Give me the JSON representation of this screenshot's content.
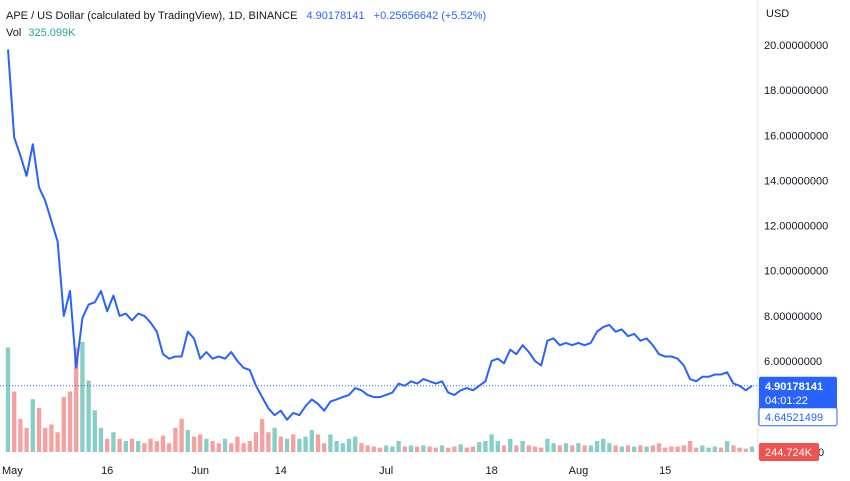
{
  "header": {
    "symbol": "APE / US Dollar (calculated by TradingView), 1D, BINANCE",
    "price": "4.90178141",
    "change": "+0.25656642 (+5.52%)"
  },
  "volume": {
    "label": "Vol",
    "value": "325.099K"
  },
  "currency": "USD",
  "tags": {
    "last_price": "4.90178141",
    "countdown": "04:01:22",
    "secondary": "4.64521499",
    "volume": "244.724K"
  },
  "colors": {
    "line": "#2962ff",
    "vol_up": "#26a69a",
    "vol_down": "#ef5350",
    "price_tag_bg": "#2962ff",
    "volume_tag_bg": "#ef5350"
  },
  "chart_data": {
    "type": "line",
    "ylim": [
      0,
      21
    ],
    "yticks": [
      {
        "value": 20,
        "label": "20.00000000"
      },
      {
        "value": 18,
        "label": "18.00000000"
      },
      {
        "value": 16,
        "label": "16.00000000"
      },
      {
        "value": 14,
        "label": "14.00000000"
      },
      {
        "value": 12,
        "label": "12.00000000"
      },
      {
        "value": 10,
        "label": "10.00000000"
      },
      {
        "value": 8,
        "label": "8.00000000"
      },
      {
        "value": 6,
        "label": "6.00000000"
      }
    ],
    "vol_zero_label": "0",
    "x_labels": [
      {
        "index": 0,
        "label": "May"
      },
      {
        "index": 16,
        "label": "16"
      },
      {
        "index": 31,
        "label": "Jun"
      },
      {
        "index": 44,
        "label": "14"
      },
      {
        "index": 61,
        "label": "Jul"
      },
      {
        "index": 78,
        "label": "18"
      },
      {
        "index": 92,
        "label": "Aug"
      },
      {
        "index": 106,
        "label": "15"
      }
    ],
    "close": [
      19.8,
      15.9,
      15.1,
      14.2,
      15.6,
      13.7,
      13.1,
      12.2,
      11.3,
      8.0,
      9.1,
      5.7,
      7.9,
      8.5,
      8.6,
      9.1,
      8.2,
      8.9,
      8.0,
      8.1,
      7.8,
      8.1,
      8.0,
      7.7,
      7.3,
      6.3,
      6.1,
      6.2,
      6.2,
      7.3,
      7.0,
      6.1,
      6.4,
      6.1,
      6.2,
      6.1,
      6.4,
      6.0,
      5.7,
      5.6,
      4.9,
      4.4,
      3.9,
      3.6,
      3.8,
      3.4,
      3.7,
      3.6,
      4.0,
      4.3,
      4.1,
      3.8,
      4.2,
      4.3,
      4.4,
      4.5,
      4.8,
      4.7,
      4.5,
      4.4,
      4.4,
      4.5,
      4.6,
      5.0,
      4.9,
      5.1,
      5.0,
      5.2,
      5.1,
      5.0,
      5.1,
      4.6,
      4.5,
      4.7,
      4.8,
      4.7,
      4.9,
      5.1,
      6.0,
      6.1,
      5.9,
      6.5,
      6.3,
      6.7,
      6.4,
      6.0,
      5.8,
      6.9,
      7.0,
      6.7,
      6.8,
      6.7,
      6.8,
      6.7,
      6.8,
      7.3,
      7.5,
      7.6,
      7.3,
      7.4,
      7.1,
      7.2,
      6.9,
      7.0,
      6.7,
      6.3,
      6.2,
      6.2,
      6.1,
      5.8,
      5.2,
      5.1,
      5.3,
      5.3,
      5.4,
      5.4,
      5.5,
      5.0,
      4.9,
      4.7,
      4.9
    ],
    "volume_bars": [
      {
        "v": 0.95,
        "up": true
      },
      {
        "v": 0.55,
        "up": false
      },
      {
        "v": 0.3,
        "up": false
      },
      {
        "v": 0.22,
        "up": false
      },
      {
        "v": 0.48,
        "up": true
      },
      {
        "v": 0.4,
        "up": false
      },
      {
        "v": 0.22,
        "up": false
      },
      {
        "v": 0.25,
        "up": false
      },
      {
        "v": 0.18,
        "up": false
      },
      {
        "v": 0.5,
        "up": false
      },
      {
        "v": 0.55,
        "up": false
      },
      {
        "v": 0.95,
        "up": false
      },
      {
        "v": 1.0,
        "up": true
      },
      {
        "v": 0.65,
        "up": true
      },
      {
        "v": 0.38,
        "up": true
      },
      {
        "v": 0.22,
        "up": true
      },
      {
        "v": 0.12,
        "up": false
      },
      {
        "v": 0.18,
        "up": true
      },
      {
        "v": 0.12,
        "up": false
      },
      {
        "v": 0.1,
        "up": true
      },
      {
        "v": 0.12,
        "up": false
      },
      {
        "v": 0.1,
        "up": true
      },
      {
        "v": 0.08,
        "up": false
      },
      {
        "v": 0.12,
        "up": false
      },
      {
        "v": 0.1,
        "up": false
      },
      {
        "v": 0.15,
        "up": false
      },
      {
        "v": 0.08,
        "up": false
      },
      {
        "v": 0.22,
        "up": false
      },
      {
        "v": 0.3,
        "up": false
      },
      {
        "v": 0.2,
        "up": true
      },
      {
        "v": 0.14,
        "up": false
      },
      {
        "v": 0.16,
        "up": false
      },
      {
        "v": 0.12,
        "up": true
      },
      {
        "v": 0.1,
        "up": false
      },
      {
        "v": 0.08,
        "up": false
      },
      {
        "v": 0.12,
        "up": true
      },
      {
        "v": 0.08,
        "up": false
      },
      {
        "v": 0.14,
        "up": false
      },
      {
        "v": 0.08,
        "up": false
      },
      {
        "v": 0.1,
        "up": false
      },
      {
        "v": 0.18,
        "up": false
      },
      {
        "v": 0.3,
        "up": false
      },
      {
        "v": 0.18,
        "up": false
      },
      {
        "v": 0.22,
        "up": true
      },
      {
        "v": 0.14,
        "up": false
      },
      {
        "v": 0.12,
        "up": true
      },
      {
        "v": 0.16,
        "up": false
      },
      {
        "v": 0.12,
        "up": true
      },
      {
        "v": 0.14,
        "up": true
      },
      {
        "v": 0.2,
        "up": true
      },
      {
        "v": 0.16,
        "up": false
      },
      {
        "v": 0.08,
        "up": false
      },
      {
        "v": 0.16,
        "up": true
      },
      {
        "v": 0.1,
        "up": true
      },
      {
        "v": 0.08,
        "up": true
      },
      {
        "v": 0.12,
        "up": true
      },
      {
        "v": 0.14,
        "up": true
      },
      {
        "v": 0.08,
        "up": false
      },
      {
        "v": 0.06,
        "up": false
      },
      {
        "v": 0.05,
        "up": false
      },
      {
        "v": 0.04,
        "up": false
      },
      {
        "v": 0.06,
        "up": true
      },
      {
        "v": 0.05,
        "up": true
      },
      {
        "v": 0.1,
        "up": true
      },
      {
        "v": 0.05,
        "up": false
      },
      {
        "v": 0.06,
        "up": true
      },
      {
        "v": 0.05,
        "up": false
      },
      {
        "v": 0.06,
        "up": true
      },
      {
        "v": 0.05,
        "up": false
      },
      {
        "v": 0.04,
        "up": false
      },
      {
        "v": 0.06,
        "up": true
      },
      {
        "v": 0.04,
        "up": false
      },
      {
        "v": 0.05,
        "up": false
      },
      {
        "v": 0.07,
        "up": true
      },
      {
        "v": 0.04,
        "up": false
      },
      {
        "v": 0.05,
        "up": false
      },
      {
        "v": 0.09,
        "up": true
      },
      {
        "v": 0.1,
        "up": true
      },
      {
        "v": 0.16,
        "up": true
      },
      {
        "v": 0.1,
        "up": true
      },
      {
        "v": 0.06,
        "up": false
      },
      {
        "v": 0.12,
        "up": true
      },
      {
        "v": 0.06,
        "up": false
      },
      {
        "v": 0.1,
        "up": true
      },
      {
        "v": 0.06,
        "up": false
      },
      {
        "v": 0.05,
        "up": false
      },
      {
        "v": 0.04,
        "up": false
      },
      {
        "v": 0.12,
        "up": true
      },
      {
        "v": 0.08,
        "up": true
      },
      {
        "v": 0.06,
        "up": false
      },
      {
        "v": 0.08,
        "up": true
      },
      {
        "v": 0.06,
        "up": false
      },
      {
        "v": 0.08,
        "up": true
      },
      {
        "v": 0.06,
        "up": false
      },
      {
        "v": 0.06,
        "up": true
      },
      {
        "v": 0.1,
        "up": true
      },
      {
        "v": 0.12,
        "up": true
      },
      {
        "v": 0.08,
        "up": true
      },
      {
        "v": 0.06,
        "up": false
      },
      {
        "v": 0.05,
        "up": true
      },
      {
        "v": 0.06,
        "up": false
      },
      {
        "v": 0.05,
        "up": true
      },
      {
        "v": 0.06,
        "up": false
      },
      {
        "v": 0.05,
        "up": true
      },
      {
        "v": 0.06,
        "up": false
      },
      {
        "v": 0.08,
        "up": false
      },
      {
        "v": 0.04,
        "up": false
      },
      {
        "v": 0.05,
        "up": false
      },
      {
        "v": 0.05,
        "up": false
      },
      {
        "v": 0.06,
        "up": false
      },
      {
        "v": 0.1,
        "up": false
      },
      {
        "v": 0.04,
        "up": false
      },
      {
        "v": 0.06,
        "up": true
      },
      {
        "v": 0.04,
        "up": true
      },
      {
        "v": 0.05,
        "up": true
      },
      {
        "v": 0.04,
        "up": false
      },
      {
        "v": 0.1,
        "up": true
      },
      {
        "v": 0.06,
        "up": false
      },
      {
        "v": 0.04,
        "up": false
      },
      {
        "v": 0.03,
        "up": false
      },
      {
        "v": 0.05,
        "up": true
      }
    ]
  }
}
